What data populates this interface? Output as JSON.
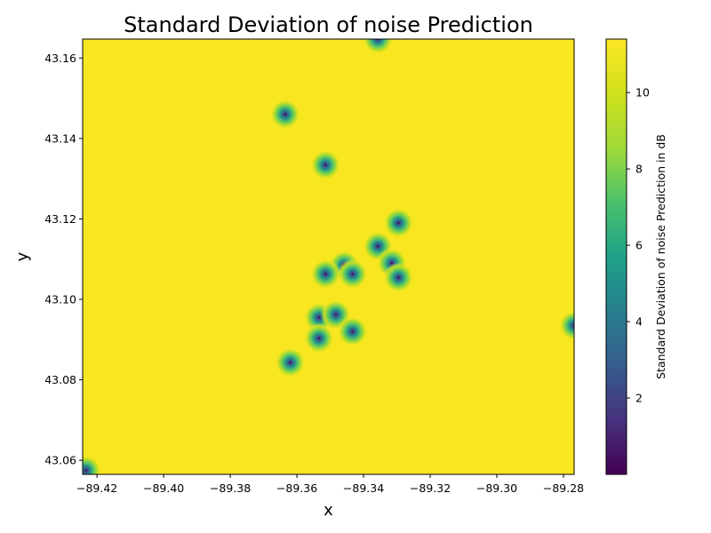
{
  "chart_data": {
    "type": "heatmap",
    "title": "Standard Deviation of noise Prediction",
    "xlabel": "x",
    "ylabel": "y",
    "xlim": [
      -89.4243,
      -89.2768
    ],
    "ylim": [
      43.0565,
      43.1647
    ],
    "x_ticks": [
      -89.42,
      -89.4,
      -89.38,
      -89.36,
      -89.34,
      -89.32,
      -89.3,
      -89.28
    ],
    "x_tick_labels": [
      "−89.42",
      "−89.40",
      "−89.38",
      "−89.36",
      "−89.34",
      "−89.32",
      "−89.30",
      "−89.28"
    ],
    "y_ticks": [
      43.06,
      43.08,
      43.1,
      43.12,
      43.14,
      43.16
    ],
    "y_tick_labels": [
      "43.06",
      "43.08",
      "43.10",
      "43.12",
      "43.14",
      "43.16"
    ],
    "background_value": 11.3,
    "colormap": "viridis",
    "colorbar": {
      "label": "Standard Deviation of noise Prediction in dB",
      "range": [
        0,
        11.4
      ],
      "ticks": [
        2,
        4,
        6,
        8,
        10
      ],
      "tick_labels": [
        "2",
        "4",
        "6",
        "8",
        "10"
      ]
    },
    "points": [
      {
        "x": -89.3357,
        "y": 43.1647
      },
      {
        "x": -89.3635,
        "y": 43.146
      },
      {
        "x": -89.3514,
        "y": 43.1334
      },
      {
        "x": -89.3295,
        "y": 43.119
      },
      {
        "x": -89.3357,
        "y": 43.1132
      },
      {
        "x": -89.3458,
        "y": 43.1085
      },
      {
        "x": -89.3315,
        "y": 43.109
      },
      {
        "x": -89.3514,
        "y": 43.1063
      },
      {
        "x": -89.3433,
        "y": 43.1063
      },
      {
        "x": -89.3295,
        "y": 43.1054
      },
      {
        "x": -89.3534,
        "y": 43.0955
      },
      {
        "x": -89.3483,
        "y": 43.0962
      },
      {
        "x": -89.3433,
        "y": 43.092
      },
      {
        "x": -89.3534,
        "y": 43.0903
      },
      {
        "x": -89.362,
        "y": 43.0843
      },
      {
        "x": -89.2768,
        "y": 43.0935
      },
      {
        "x": -89.4233,
        "y": 43.0575
      }
    ]
  }
}
